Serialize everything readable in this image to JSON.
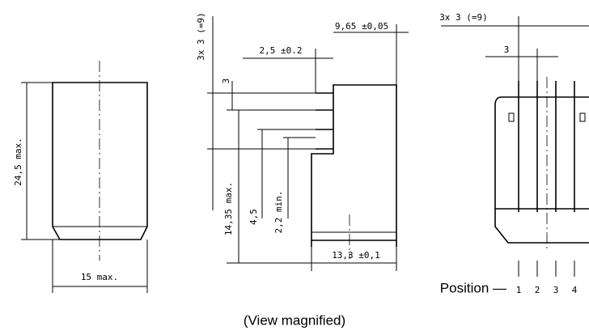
{
  "left_view": {
    "height_label": "24,5 max.",
    "width_label": "15 max."
  },
  "middle_view": {
    "pitch_label": "3x 3 (=9)",
    "pitch_single": "3",
    "depth_label": "9,65 ±0,05",
    "offset_label": "2,5 ±0.2",
    "height_label": "14,35 max.",
    "pin_label": "4,5",
    "pin_min_label": "2,2 min.",
    "width_label": "13,3 ±0,1"
  },
  "right_view": {
    "pitch_label": "3x 3 (=9)",
    "pitch_single": "3",
    "position_label": "Position —",
    "positions": [
      "1",
      "2",
      "3",
      "4"
    ]
  },
  "caption": "(View magnified)"
}
